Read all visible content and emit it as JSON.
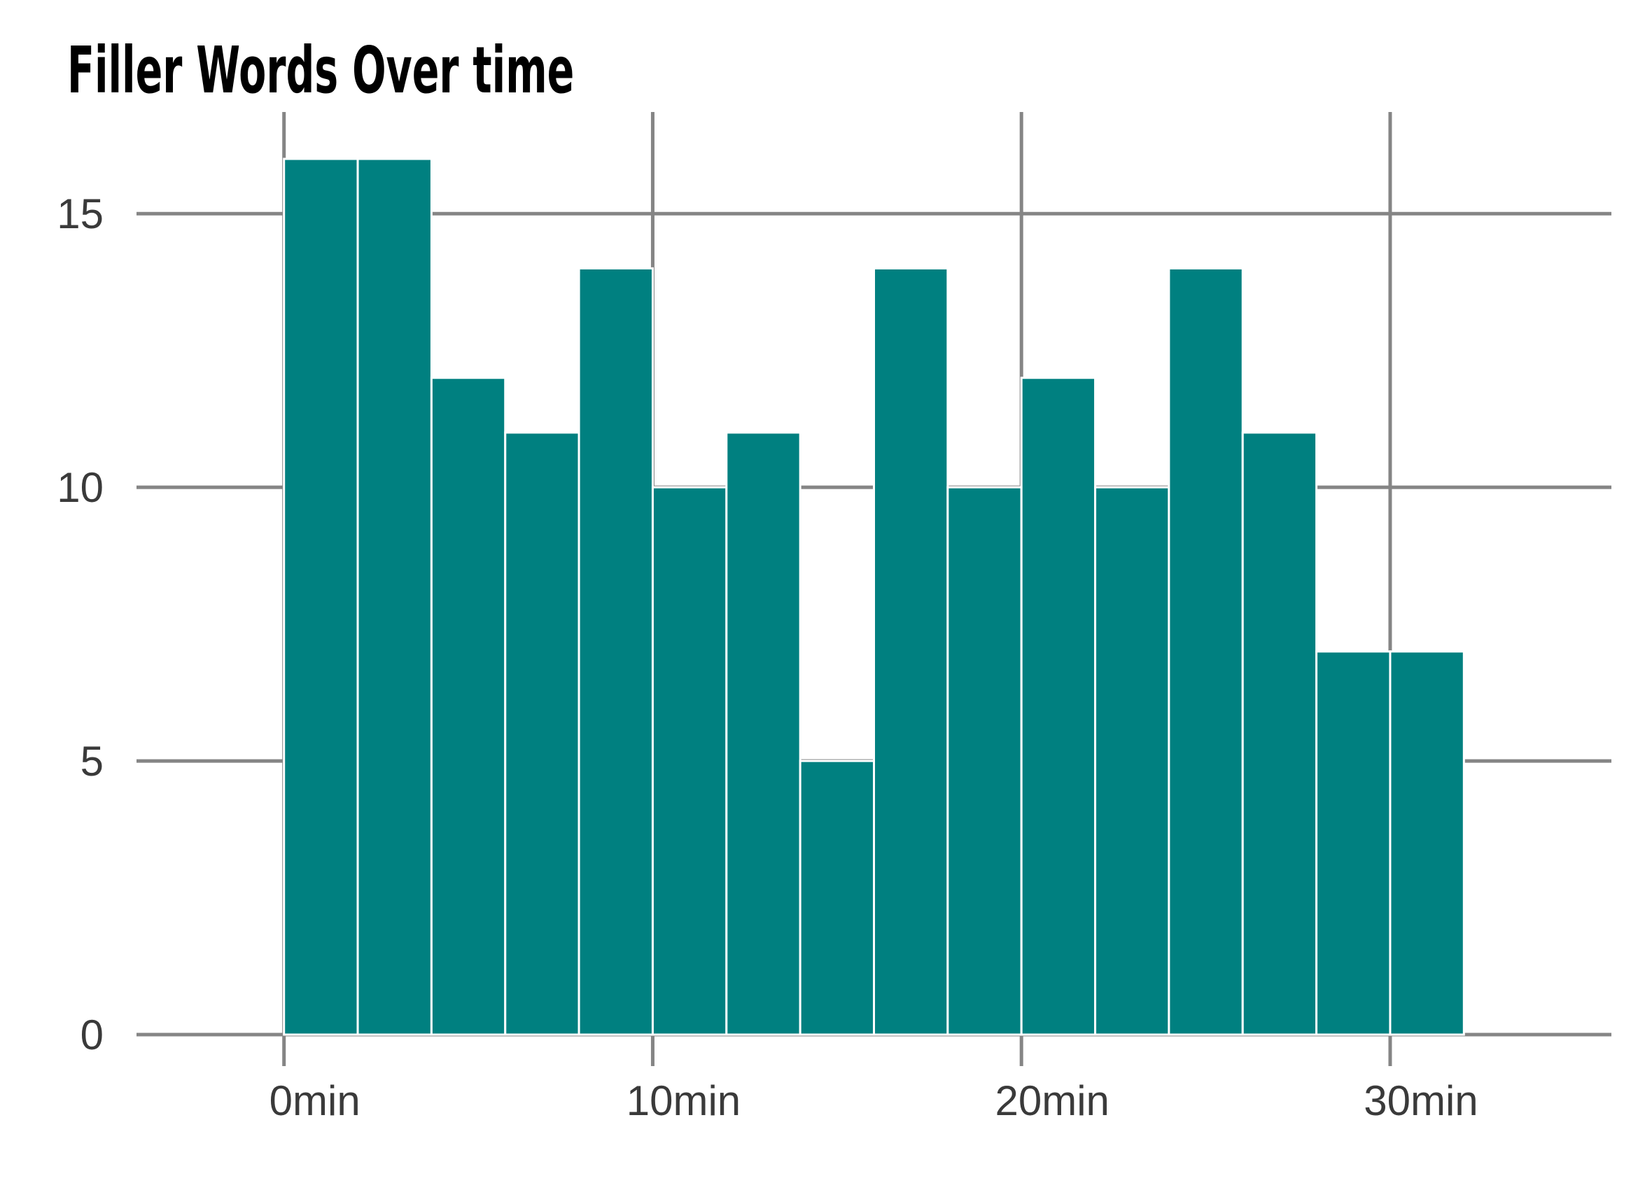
{
  "chart_data": {
    "type": "bar",
    "title": "Filler Words Over time",
    "xlabel": "",
    "ylabel": "",
    "bin_width_min": 2,
    "x_start_min": 0,
    "values": [
      16,
      16,
      12,
      11,
      14,
      10,
      11,
      5,
      14,
      10,
      12,
      10,
      14,
      11,
      7,
      7
    ],
    "x_ticks": [
      0,
      10,
      20,
      30
    ],
    "x_tick_labels": [
      "0min",
      "10min",
      "20min",
      "30min"
    ],
    "y_ticks": [
      0,
      5,
      10,
      15
    ],
    "y_tick_labels": [
      "0",
      "5",
      "10",
      "15"
    ],
    "xlim": [
      -4,
      36
    ],
    "ylim": [
      0,
      16
    ],
    "grid": true,
    "colors": {
      "bar_fill": "#008080",
      "bar_edge": "#ffffff",
      "grid": "#858585",
      "tick_text": "#3a3a3a",
      "title": "#000000"
    }
  }
}
